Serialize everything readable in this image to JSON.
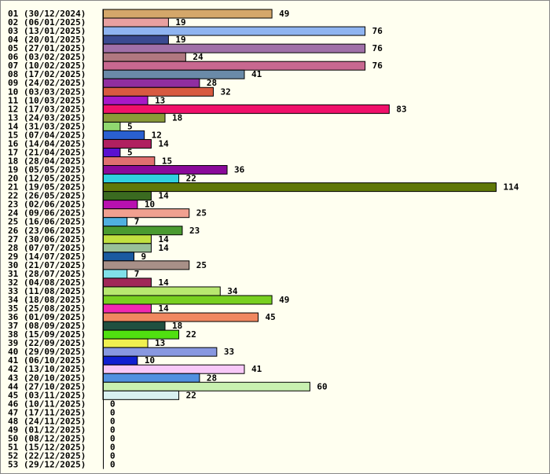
{
  "chart_data": {
    "type": "bar",
    "orientation": "horizontal",
    "title": "",
    "xlabel": "",
    "ylabel": "",
    "grid": false,
    "xlim": [
      0,
      114
    ],
    "categories": [
      "01 (30/12/2024)",
      "02 (06/01/2025)",
      "03 (13/01/2025)",
      "04 (20/01/2025)",
      "05 (27/01/2025)",
      "06 (03/02/2025)",
      "07 (10/02/2025)",
      "08 (17/02/2025)",
      "09 (24/02/2025)",
      "10 (03/03/2025)",
      "11 (10/03/2025)",
      "12 (17/03/2025)",
      "13 (24/03/2025)",
      "14 (31/03/2025)",
      "15 (07/04/2025)",
      "16 (14/04/2025)",
      "17 (21/04/2025)",
      "18 (28/04/2025)",
      "19 (05/05/2025)",
      "20 (12/05/2025)",
      "21 (19/05/2025)",
      "22 (26/05/2025)",
      "23 (02/06/2025)",
      "24 (09/06/2025)",
      "25 (16/06/2025)",
      "26 (23/06/2025)",
      "27 (30/06/2025)",
      "28 (07/07/2025)",
      "29 (14/07/2025)",
      "30 (21/07/2025)",
      "31 (28/07/2025)",
      "32 (04/08/2025)",
      "33 (11/08/2025)",
      "34 (18/08/2025)",
      "35 (25/08/2025)",
      "36 (01/09/2025)",
      "37 (08/09/2025)",
      "38 (15/09/2025)",
      "39 (22/09/2025)",
      "40 (29/09/2025)",
      "41 (06/10/2025)",
      "42 (13/10/2025)",
      "43 (20/10/2025)",
      "44 (27/10/2025)",
      "45 (03/11/2025)",
      "46 (10/11/2025)",
      "47 (17/11/2025)",
      "48 (24/11/2025)",
      "49 (01/12/2025)",
      "50 (08/12/2025)",
      "51 (15/12/2025)",
      "52 (22/12/2025)",
      "53 (29/12/2025)"
    ],
    "values": [
      49,
      19,
      76,
      19,
      76,
      24,
      76,
      41,
      28,
      32,
      13,
      83,
      18,
      5,
      12,
      14,
      5,
      15,
      36,
      22,
      114,
      14,
      10,
      25,
      7,
      23,
      14,
      14,
      9,
      25,
      7,
      14,
      34,
      49,
      14,
      45,
      18,
      22,
      13,
      33,
      10,
      41,
      28,
      60,
      22,
      0,
      0,
      0,
      0,
      0,
      0,
      0,
      0
    ],
    "colors": [
      "#d4a76a",
      "#e8a0a0",
      "#8fb4f0",
      "#3a4a90",
      "#a070a8",
      "#b07880",
      "#c86890",
      "#6a8aa8",
      "#902ea0",
      "#d85a40",
      "#a818c8",
      "#f0106a",
      "#8a9a38",
      "#90d870",
      "#2a60d0",
      "#b02060",
      "#5a10d0",
      "#e07070",
      "#8a0a9a",
      "#30d0e0",
      "#607808",
      "#3a6a20",
      "#b810b0",
      "#f0a090",
      "#50b0e0",
      "#4a9a30",
      "#c0e040",
      "#98c098",
      "#1a5aa0",
      "#a89088",
      "#80e0e8",
      "#a02858",
      "#b8e870",
      "#78d020",
      "#f028b0",
      "#f08860",
      "#205040",
      "#50e010",
      "#f0f050",
      "#8898e0",
      "#1020d0",
      "#f8c8f8",
      "#5090e0",
      "#c8f0b0",
      "#d8f0f0",
      "#ffffff",
      "#ffffff",
      "#ffffff",
      "#ffffff",
      "#ffffff",
      "#ffffff",
      "#ffffff",
      "#ffffff"
    ]
  }
}
